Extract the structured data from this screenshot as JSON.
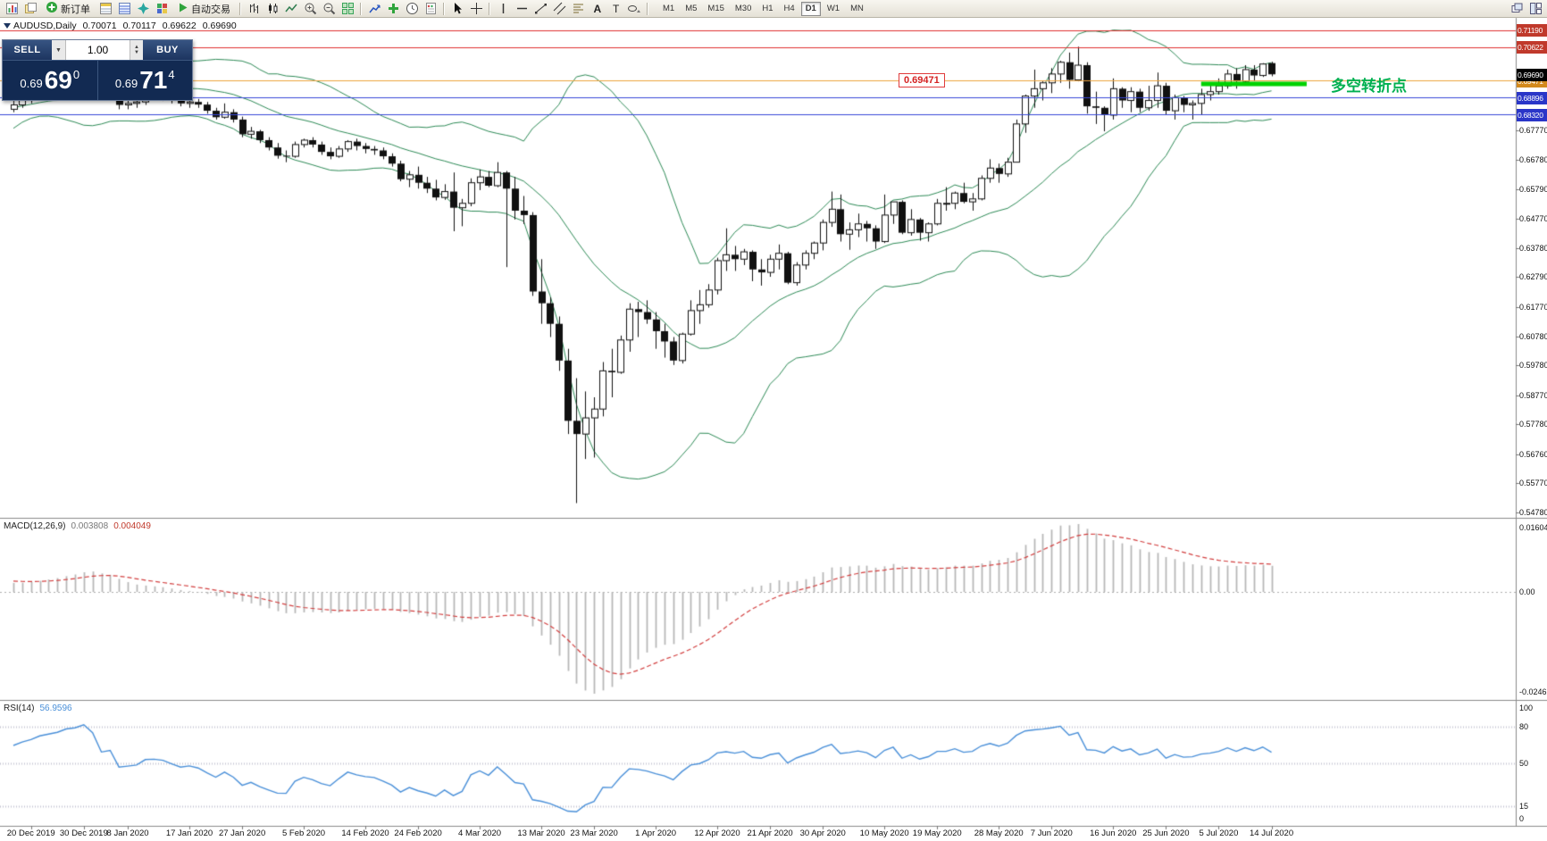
{
  "toolbar": {
    "new_order": "新订单",
    "autotrading": "自动交易",
    "timeframes": [
      {
        "label": "M1",
        "active": false
      },
      {
        "label": "M5",
        "active": false
      },
      {
        "label": "M15",
        "active": false
      },
      {
        "label": "M30",
        "active": false
      },
      {
        "label": "H1",
        "active": false
      },
      {
        "label": "H4",
        "active": false
      },
      {
        "label": "D1",
        "active": true
      },
      {
        "label": "W1",
        "active": false
      },
      {
        "label": "MN",
        "active": false
      }
    ]
  },
  "quote_panel": {
    "sell_label": "SELL",
    "buy_label": "BUY",
    "volume": "1.00",
    "sell_price_small": "0.69",
    "sell_price_big": "69",
    "sell_price_sup": "0",
    "buy_price_small": "0.69",
    "buy_price_big": "71",
    "buy_price_sup": "4"
  },
  "symbol_info": {
    "symbol_period": "AUDUSD,Daily",
    "open": "0.70071",
    "high": "0.70117",
    "low": "0.69622",
    "close": "0.69690"
  },
  "chart_data": {
    "type": "candlestick",
    "title": "AUDUSD,Daily 0.70071 0.70117 0.69622 0.69690",
    "symbol": "AUDUSD",
    "timeframe": "D1",
    "ylim": [
      0.5466,
      0.7155
    ],
    "price_ticks": [
      "0.67770",
      "0.66780",
      "0.65790",
      "0.64770",
      "0.63780",
      "0.62790",
      "0.61770",
      "0.60780",
      "0.59780",
      "0.58770",
      "0.57780",
      "0.56760",
      "0.55770",
      "0.54780"
    ],
    "levels": [
      {
        "value": 0.7119,
        "label": "0.71190",
        "line_color": "#e03030",
        "label_bg": "#c0392b"
      },
      {
        "value": 0.70622,
        "label": "0.70622",
        "line_color": "#e03030",
        "label_bg": "#c0392b"
      },
      {
        "value": 0.69471,
        "label": "0.69471",
        "line_color": "#eda33d",
        "label_bg": "#d3891c"
      },
      {
        "value": 0.68896,
        "label": "0.68896",
        "line_color": "#3848d8",
        "label_bg": "#2a36c8"
      },
      {
        "value": 0.6832,
        "label": "0.68320",
        "line_color": "#3848d8",
        "label_bg": "#2a36c8"
      }
    ],
    "current_price": {
      "value": 0.6969,
      "label": "0.69690",
      "label_bg": "#000000"
    },
    "price_tag": {
      "text": "0.69471",
      "index": 100,
      "price": 0.69471
    },
    "turning_point": {
      "text": "多空转折点",
      "price": 0.6936,
      "from_index": 135,
      "to_index": 147,
      "line_color": "#00d200",
      "text_color": "#00b050"
    },
    "bollinger": {
      "period": 20,
      "deviation": 2,
      "color": "#2e8b57"
    },
    "macd": {
      "label": "MACD(12,26,9)",
      "value_main": "0.003808",
      "value_signal": "0.004049",
      "scale_max": "0.016048",
      "scale_zero": "0.00",
      "scale_min": "-0.024625",
      "fast": 12,
      "slow": 26,
      "signal": 9,
      "hist_color": "#b8b8b8",
      "signal_color": "#d34040"
    },
    "rsi": {
      "label": "RSI(14)",
      "value": "56.9596",
      "period": 14,
      "scale_labels": [
        "100",
        "80",
        "50",
        "15",
        "0"
      ],
      "levels": [
        80,
        50,
        15
      ],
      "color": "#4a90d9"
    },
    "x_labels": [
      {
        "index": 2,
        "label": "20 Dec 2019"
      },
      {
        "index": 8,
        "label": "30 Dec 2019"
      },
      {
        "index": 13,
        "label": "8 Jan 2020"
      },
      {
        "index": 20,
        "label": "17 Jan 2020"
      },
      {
        "index": 26,
        "label": "27 Jan 2020"
      },
      {
        "index": 33,
        "label": "5 Feb 2020"
      },
      {
        "index": 40,
        "label": "14 Feb 2020"
      },
      {
        "index": 46,
        "label": "24 Feb 2020"
      },
      {
        "index": 53,
        "label": "4 Mar 2020"
      },
      {
        "index": 60,
        "label": "13 Mar 2020"
      },
      {
        "index": 66,
        "label": "23 Mar 2020"
      },
      {
        "index": 73,
        "label": "1 Apr 2020"
      },
      {
        "index": 80,
        "label": "12 Apr 2020"
      },
      {
        "index": 86,
        "label": "21 Apr 2020"
      },
      {
        "index": 92,
        "label": "30 Apr 2020"
      },
      {
        "index": 99,
        "label": "10 May 2020"
      },
      {
        "index": 105,
        "label": "19 May 2020"
      },
      {
        "index": 112,
        "label": "28 May 2020"
      },
      {
        "index": 118,
        "label": "7 Jun 2020"
      },
      {
        "index": 125,
        "label": "16 Jun 2020"
      },
      {
        "index": 131,
        "label": "25 Jun 2020"
      },
      {
        "index": 137,
        "label": "5 Jul 2020"
      },
      {
        "index": 143,
        "label": "14 Jul 2020"
      }
    ],
    "prehistory_closes": [
      0.676,
      0.679,
      0.681,
      0.6835,
      0.686,
      0.688,
      0.6905,
      0.689,
      0.687,
      0.6855,
      0.684,
      0.6855,
      0.687,
      0.6885,
      0.69,
      0.688,
      0.686,
      0.6845,
      0.685
    ],
    "candles": [
      [
        0.685,
        0.688,
        0.684,
        0.6865
      ],
      [
        0.6865,
        0.6895,
        0.6855,
        0.6885
      ],
      [
        0.6885,
        0.6905,
        0.687,
        0.69
      ],
      [
        0.69,
        0.6935,
        0.689,
        0.6925
      ],
      [
        0.6925,
        0.6945,
        0.6915,
        0.6938
      ],
      [
        0.6938,
        0.696,
        0.6928,
        0.6952
      ],
      [
        0.6952,
        0.6985,
        0.6945,
        0.698
      ],
      [
        0.698,
        0.7,
        0.6968,
        0.699
      ],
      [
        0.699,
        0.7032,
        0.6985,
        0.7021
      ],
      [
        0.7021,
        0.7025,
        0.698,
        0.7
      ],
      [
        0.7,
        0.7005,
        0.6925,
        0.6935
      ],
      [
        0.6935,
        0.696,
        0.692,
        0.6945
      ],
      [
        0.6945,
        0.695,
        0.685,
        0.6865
      ],
      [
        0.6865,
        0.6885,
        0.685,
        0.687
      ],
      [
        0.687,
        0.689,
        0.6855,
        0.6875
      ],
      [
        0.6875,
        0.691,
        0.6865,
        0.6903
      ],
      [
        0.6903,
        0.692,
        0.689,
        0.6905
      ],
      [
        0.6905,
        0.6915,
        0.688,
        0.69
      ],
      [
        0.69,
        0.6905,
        0.687,
        0.6885
      ],
      [
        0.6885,
        0.6895,
        0.686,
        0.687
      ],
      [
        0.687,
        0.688,
        0.6855,
        0.6875
      ],
      [
        0.6875,
        0.6885,
        0.6855,
        0.6866
      ],
      [
        0.6866,
        0.6875,
        0.6835,
        0.6845
      ],
      [
        0.6845,
        0.6855,
        0.6815,
        0.6823
      ],
      [
        0.6823,
        0.687,
        0.6818,
        0.684
      ],
      [
        0.684,
        0.685,
        0.6805,
        0.6815
      ],
      [
        0.6815,
        0.6825,
        0.6755,
        0.6765
      ],
      [
        0.6765,
        0.679,
        0.675,
        0.6775
      ],
      [
        0.6775,
        0.678,
        0.6735,
        0.6745
      ],
      [
        0.6745,
        0.6755,
        0.671,
        0.672
      ],
      [
        0.672,
        0.6735,
        0.6682,
        0.6692
      ],
      [
        0.6692,
        0.671,
        0.667,
        0.669
      ],
      [
        0.669,
        0.674,
        0.6685,
        0.673
      ],
      [
        0.673,
        0.675,
        0.672,
        0.6745
      ],
      [
        0.6745,
        0.6755,
        0.672,
        0.673
      ],
      [
        0.673,
        0.674,
        0.6695,
        0.6705
      ],
      [
        0.6705,
        0.672,
        0.668,
        0.669
      ],
      [
        0.669,
        0.6725,
        0.6685,
        0.6715
      ],
      [
        0.6715,
        0.6745,
        0.6705,
        0.674
      ],
      [
        0.674,
        0.675,
        0.671,
        0.6725
      ],
      [
        0.6725,
        0.6735,
        0.67,
        0.6715
      ],
      [
        0.6715,
        0.6725,
        0.6695,
        0.671
      ],
      [
        0.671,
        0.672,
        0.668,
        0.669
      ],
      [
        0.669,
        0.67,
        0.6655,
        0.6665
      ],
      [
        0.6665,
        0.6675,
        0.6605,
        0.6612
      ],
      [
        0.6612,
        0.664,
        0.6585,
        0.6627
      ],
      [
        0.6627,
        0.6655,
        0.658,
        0.66
      ],
      [
        0.66,
        0.662,
        0.6565,
        0.658
      ],
      [
        0.658,
        0.661,
        0.654,
        0.655
      ],
      [
        0.655,
        0.6595,
        0.6542,
        0.657
      ],
      [
        0.657,
        0.6635,
        0.6435,
        0.6515
      ],
      [
        0.6515,
        0.6545,
        0.6452,
        0.653
      ],
      [
        0.653,
        0.6615,
        0.652,
        0.66
      ],
      [
        0.66,
        0.6645,
        0.6575,
        0.662
      ],
      [
        0.662,
        0.664,
        0.6585,
        0.659
      ],
      [
        0.659,
        0.667,
        0.6585,
        0.6635
      ],
      [
        0.6635,
        0.664,
        0.6313,
        0.658
      ],
      [
        0.658,
        0.662,
        0.6475,
        0.6505
      ],
      [
        0.6505,
        0.6555,
        0.646,
        0.649
      ],
      [
        0.649,
        0.65,
        0.6215,
        0.623
      ],
      [
        0.623,
        0.634,
        0.612,
        0.619
      ],
      [
        0.619,
        0.621,
        0.6075,
        0.612
      ],
      [
        0.612,
        0.6145,
        0.596,
        0.5995
      ],
      [
        0.5995,
        0.6035,
        0.5745,
        0.579
      ],
      [
        0.579,
        0.5935,
        0.551,
        0.5745
      ],
      [
        0.5745,
        0.589,
        0.566,
        0.58
      ],
      [
        0.58,
        0.587,
        0.5665,
        0.583
      ],
      [
        0.583,
        0.599,
        0.5805,
        0.596
      ],
      [
        0.596,
        0.6035,
        0.587,
        0.5955
      ],
      [
        0.5955,
        0.608,
        0.595,
        0.6065
      ],
      [
        0.6065,
        0.619,
        0.6025,
        0.617
      ],
      [
        0.617,
        0.6195,
        0.6075,
        0.616
      ],
      [
        0.616,
        0.62,
        0.612,
        0.6135
      ],
      [
        0.6135,
        0.616,
        0.6035,
        0.6095
      ],
      [
        0.6095,
        0.612,
        0.6005,
        0.606
      ],
      [
        0.606,
        0.6075,
        0.598,
        0.5995
      ],
      [
        0.5995,
        0.609,
        0.5985,
        0.6085
      ],
      [
        0.6085,
        0.62,
        0.608,
        0.6165
      ],
      [
        0.6165,
        0.6235,
        0.612,
        0.6185
      ],
      [
        0.6185,
        0.6255,
        0.6175,
        0.6235
      ],
      [
        0.6235,
        0.6345,
        0.622,
        0.6335
      ],
      [
        0.6335,
        0.6445,
        0.63,
        0.6355
      ],
      [
        0.6355,
        0.6385,
        0.63,
        0.634
      ],
      [
        0.634,
        0.6375,
        0.632,
        0.6365
      ],
      [
        0.6365,
        0.637,
        0.6265,
        0.6305
      ],
      [
        0.6305,
        0.634,
        0.625,
        0.6295
      ],
      [
        0.6295,
        0.6355,
        0.628,
        0.634
      ],
      [
        0.634,
        0.639,
        0.6305,
        0.636
      ],
      [
        0.636,
        0.6365,
        0.6255,
        0.626
      ],
      [
        0.626,
        0.633,
        0.625,
        0.632
      ],
      [
        0.632,
        0.637,
        0.6305,
        0.636
      ],
      [
        0.636,
        0.64,
        0.634,
        0.6395
      ],
      [
        0.6395,
        0.6475,
        0.637,
        0.6465
      ],
      [
        0.6465,
        0.657,
        0.645,
        0.651
      ],
      [
        0.651,
        0.656,
        0.64,
        0.6425
      ],
      [
        0.6425,
        0.6465,
        0.6372,
        0.644
      ],
      [
        0.644,
        0.6495,
        0.6415,
        0.646
      ],
      [
        0.646,
        0.647,
        0.64,
        0.6445
      ],
      [
        0.6445,
        0.6455,
        0.6375,
        0.64
      ],
      [
        0.64,
        0.656,
        0.6395,
        0.649
      ],
      [
        0.649,
        0.6535,
        0.646,
        0.6535
      ],
      [
        0.6535,
        0.654,
        0.6425,
        0.643
      ],
      [
        0.643,
        0.651,
        0.642,
        0.6475
      ],
      [
        0.6475,
        0.648,
        0.6403,
        0.643
      ],
      [
        0.643,
        0.6465,
        0.64,
        0.646
      ],
      [
        0.646,
        0.6545,
        0.6455,
        0.653
      ],
      [
        0.653,
        0.6585,
        0.6505,
        0.653
      ],
      [
        0.653,
        0.657,
        0.651,
        0.6565
      ],
      [
        0.6565,
        0.66,
        0.653,
        0.6535
      ],
      [
        0.6535,
        0.6565,
        0.6505,
        0.6545
      ],
      [
        0.6545,
        0.6625,
        0.654,
        0.6615
      ],
      [
        0.6615,
        0.668,
        0.66,
        0.665
      ],
      [
        0.665,
        0.6665,
        0.66,
        0.663
      ],
      [
        0.663,
        0.6685,
        0.662,
        0.667
      ],
      [
        0.667,
        0.6815,
        0.667,
        0.68
      ],
      [
        0.68,
        0.69,
        0.677,
        0.6895
      ],
      [
        0.6895,
        0.6985,
        0.6855,
        0.692
      ],
      [
        0.692,
        0.6945,
        0.688,
        0.694
      ],
      [
        0.694,
        0.699,
        0.6905,
        0.697
      ],
      [
        0.697,
        0.7015,
        0.694,
        0.701
      ],
      [
        0.701,
        0.7043,
        0.692,
        0.695
      ],
      [
        0.695,
        0.7063,
        0.6945,
        0.7
      ],
      [
        0.7,
        0.701,
        0.6835,
        0.686
      ],
      [
        0.686,
        0.691,
        0.68,
        0.6855
      ],
      [
        0.6855,
        0.686,
        0.6775,
        0.683
      ],
      [
        0.683,
        0.6955,
        0.6815,
        0.692
      ],
      [
        0.692,
        0.6925,
        0.6855,
        0.688
      ],
      [
        0.688,
        0.6925,
        0.684,
        0.691
      ],
      [
        0.691,
        0.692,
        0.684,
        0.6855
      ],
      [
        0.6855,
        0.693,
        0.6845,
        0.688
      ],
      [
        0.688,
        0.6975,
        0.6855,
        0.693
      ],
      [
        0.693,
        0.694,
        0.683,
        0.6845
      ],
      [
        0.6845,
        0.69,
        0.6815,
        0.689
      ],
      [
        0.689,
        0.6895,
        0.684,
        0.6865
      ],
      [
        0.6865,
        0.688,
        0.6815,
        0.687
      ],
      [
        0.687,
        0.692,
        0.683,
        0.69
      ],
      [
        0.69,
        0.6935,
        0.688,
        0.691
      ],
      [
        0.691,
        0.6955,
        0.69,
        0.693
      ],
      [
        0.693,
        0.6985,
        0.692,
        0.697
      ],
      [
        0.697,
        0.699,
        0.692,
        0.6945
      ],
      [
        0.6945,
        0.7,
        0.694,
        0.6985
      ],
      [
        0.6985,
        0.7,
        0.6945,
        0.6965
      ],
      [
        0.6965,
        0.7007,
        0.696,
        0.7004
      ],
      [
        0.70071,
        0.70117,
        0.69622,
        0.6969
      ]
    ]
  }
}
